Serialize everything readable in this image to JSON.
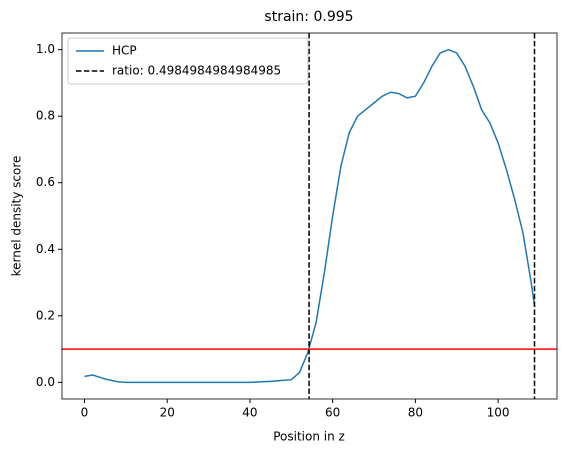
{
  "chart_data": {
    "type": "line",
    "title": "strain: 0.995",
    "xlabel": "Position in z",
    "ylabel": "kernel density score",
    "x": [
      0,
      2,
      5,
      8,
      10,
      20,
      30,
      40,
      45,
      50,
      52,
      54,
      56,
      58,
      60,
      62,
      64,
      66,
      68,
      70,
      72,
      74,
      76,
      78,
      80,
      82,
      84,
      86,
      88,
      90,
      92,
      94,
      96,
      98,
      100,
      102,
      104,
      106,
      108,
      108.8
    ],
    "series": [
      {
        "name": "HCP",
        "color": "#1f77b4",
        "values": [
          0.018,
          0.022,
          0.01,
          0.002,
          0,
          0,
          0,
          0,
          0.003,
          0.008,
          0.03,
          0.09,
          0.18,
          0.33,
          0.5,
          0.65,
          0.75,
          0.8,
          0.82,
          0.84,
          0.86,
          0.872,
          0.868,
          0.855,
          0.86,
          0.9,
          0.95,
          0.99,
          1.0,
          0.99,
          0.95,
          0.89,
          0.82,
          0.78,
          0.72,
          0.64,
          0.55,
          0.45,
          0.3,
          0.23
        ]
      }
    ],
    "vlines": {
      "name": "ratio: 0.4984984984984985",
      "color": "#000000",
      "x": [
        54.3,
        108.8
      ]
    },
    "hline": {
      "y": 0.1,
      "color": "#ff0000"
    },
    "xlim": [
      -5.44,
      114.24
    ],
    "ylim": [
      -0.05,
      1.05
    ],
    "xticks": [
      0,
      20,
      40,
      60,
      80,
      100
    ],
    "yticks": [
      {
        "value": 0,
        "label": "0.0"
      },
      {
        "value": 0.2,
        "label": "0.2"
      },
      {
        "value": 0.4,
        "label": "0.4"
      },
      {
        "value": 0.6,
        "label": "0.6"
      },
      {
        "value": 0.8,
        "label": "0.8"
      },
      {
        "value": 1.0,
        "label": "1.0"
      }
    ],
    "legend": "upper left"
  }
}
